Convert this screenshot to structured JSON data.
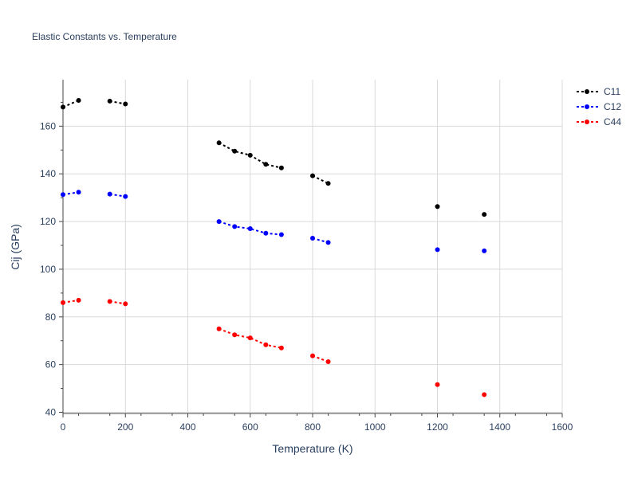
{
  "chart_data": {
    "type": "scatter",
    "title": "Elastic Constants vs. Temperature",
    "xlabel": "Temperature (K)",
    "ylabel": "Cij (GPa)",
    "xlim": [
      0,
      1600
    ],
    "ylim": [
      39.5,
      179.5
    ],
    "xticks": [
      0,
      200,
      400,
      600,
      800,
      1000,
      1200,
      1400,
      1600
    ],
    "yticks": [
      40,
      60,
      80,
      100,
      120,
      140,
      160
    ],
    "grid": true,
    "legend_position": "top-right",
    "series": [
      {
        "name": "C11",
        "color": "#000000",
        "segments": [
          [
            [
              0,
              168
            ],
            [
              50,
              170.8
            ]
          ],
          [
            [
              150,
              170.5
            ],
            [
              200,
              169.3
            ]
          ],
          [
            [
              500,
              153
            ],
            [
              550,
              149.5
            ],
            [
              600,
              147.8
            ],
            [
              650,
              144
            ],
            [
              700,
              142.5
            ]
          ],
          [
            [
              800,
              139.2
            ],
            [
              850,
              136
            ]
          ],
          [
            [
              1200,
              126.3
            ]
          ],
          [
            [
              1350,
              123
            ]
          ]
        ]
      },
      {
        "name": "C12",
        "color": "#0000ff",
        "segments": [
          [
            [
              0,
              131.3
            ],
            [
              50,
              132.3
            ]
          ],
          [
            [
              150,
              131.5
            ],
            [
              200,
              130.5
            ]
          ],
          [
            [
              500,
              120
            ],
            [
              550,
              117.9
            ],
            [
              600,
              117
            ],
            [
              650,
              115.1
            ],
            [
              700,
              114.5
            ]
          ],
          [
            [
              800,
              113
            ],
            [
              850,
              111.2
            ]
          ],
          [
            [
              1200,
              108.2
            ]
          ],
          [
            [
              1350,
              107.7
            ]
          ]
        ]
      },
      {
        "name": "C44",
        "color": "#ff0000",
        "segments": [
          [
            [
              0,
              86
            ],
            [
              50,
              87
            ]
          ],
          [
            [
              150,
              86.5
            ],
            [
              200,
              85.5
            ]
          ],
          [
            [
              500,
              75
            ],
            [
              550,
              72.5
            ],
            [
              600,
              71.2
            ],
            [
              650,
              68.3
            ],
            [
              700,
              67
            ]
          ],
          [
            [
              800,
              63.7
            ],
            [
              850,
              61.2
            ]
          ],
          [
            [
              1200,
              51.6
            ]
          ],
          [
            [
              1350,
              47.4
            ]
          ]
        ]
      }
    ]
  }
}
